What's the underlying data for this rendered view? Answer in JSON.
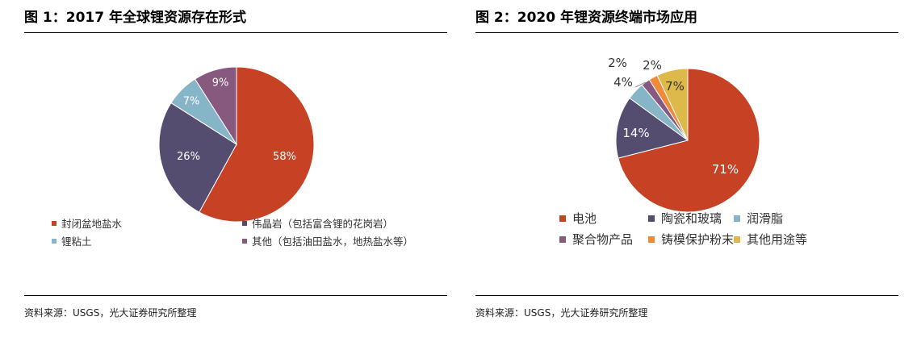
{
  "chart_data": [
    {
      "type": "pie",
      "title": "图 1：2017 年全球锂资源存在形式",
      "categories": [
        "封闭盆地盐水",
        "伟晶岩（包括富含锂的花岗岩）",
        "锂粘土",
        "其他（包括油田盐水，地热盐水等）"
      ],
      "values": [
        58,
        26,
        7,
        9
      ],
      "labels": [
        "58%",
        "26%",
        "7%",
        "9%"
      ],
      "colors": [
        "#C74125",
        "#554D6F",
        "#86B5C8",
        "#87597F"
      ],
      "label_colors": [
        "#ffffff",
        "#ffffff",
        "#ffffff",
        "#ffffff"
      ],
      "source": "资料来源：USGS，光大证券研究所整理",
      "legend_position": "bottom"
    },
    {
      "type": "pie",
      "title": "图 2：2020 年锂资源终端市场应用",
      "categories": [
        "电池",
        "陶瓷和玻璃",
        "润滑脂",
        "聚合物产品",
        "铸模保护粉末",
        "其他用途等"
      ],
      "values": [
        71,
        14,
        4,
        2,
        2,
        7
      ],
      "labels": [
        "71%",
        "14%",
        "4%",
        "2%",
        "2%",
        "7%"
      ],
      "colors": [
        "#C74125",
        "#554D6F",
        "#86B5C8",
        "#87597F",
        "#F08A3A",
        "#DDB84B"
      ],
      "label_colors": [
        "#ffffff",
        "#ffffff",
        "#333333",
        "#333333",
        "#333333",
        "#333333"
      ],
      "source": "资料来源：USGS，光大证券研究所整理",
      "legend_position": "bottom"
    }
  ]
}
